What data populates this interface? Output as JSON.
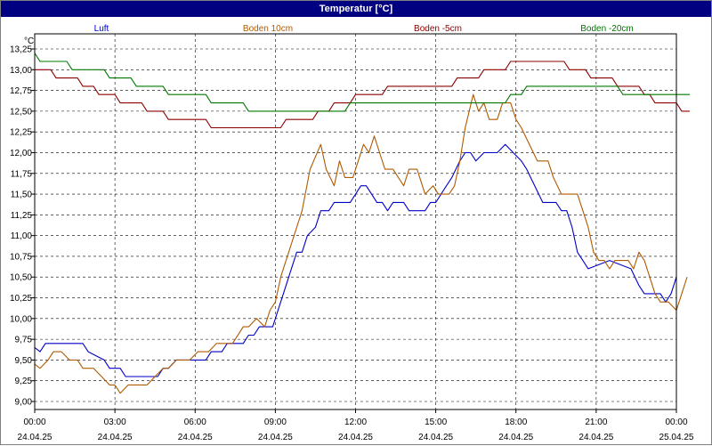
{
  "window": {
    "title": "Temperatur [°C]"
  },
  "chart_data": {
    "type": "line",
    "title": "Temperatur [°C]",
    "ylabel": "°C",
    "xlabel": "",
    "ylim": [
      9.0,
      13.25
    ],
    "y_ticks": [
      "13,25",
      "13,00",
      "12,75",
      "12,50",
      "12,25",
      "12,00",
      "11,75",
      "11,50",
      "11,25",
      "11,00",
      "10,75",
      "10,50",
      "10,25",
      "10,00",
      "9,75",
      "9,50",
      "9,25",
      "9,00"
    ],
    "x_ticks": [
      {
        "time": "00:00",
        "date": "24.04.25"
      },
      {
        "time": "03:00",
        "date": "24.04.25"
      },
      {
        "time": "06:00",
        "date": "24.04.25"
      },
      {
        "time": "09:00",
        "date": "24.04.25"
      },
      {
        "time": "12:00",
        "date": "24.04.25"
      },
      {
        "time": "15:00",
        "date": "24.04.25"
      },
      {
        "time": "18:00",
        "date": "24.04.25"
      },
      {
        "time": "21:00",
        "date": "24.04.25"
      },
      {
        "time": "00:00",
        "date": "25.04.25"
      }
    ],
    "x_unit": "hours",
    "xlim": [
      0,
      24
    ],
    "grid": true,
    "legend_position": "top",
    "series": [
      {
        "name": "Luft",
        "color": "#0000c8",
        "points": [
          [
            0,
            9.65
          ],
          [
            0.2,
            9.6
          ],
          [
            0.4,
            9.7
          ],
          [
            1.8,
            9.7
          ],
          [
            2,
            9.6
          ],
          [
            2.6,
            9.5
          ],
          [
            2.8,
            9.4
          ],
          [
            3.2,
            9.4
          ],
          [
            3.4,
            9.3
          ],
          [
            4.6,
            9.3
          ],
          [
            4.8,
            9.4
          ],
          [
            5.0,
            9.4
          ],
          [
            5.3,
            9.5
          ],
          [
            6.4,
            9.5
          ],
          [
            6.6,
            9.6
          ],
          [
            7.0,
            9.6
          ],
          [
            7.2,
            9.7
          ],
          [
            7.8,
            9.7
          ],
          [
            8.0,
            9.8
          ],
          [
            8.2,
            9.8
          ],
          [
            8.4,
            9.9
          ],
          [
            8.9,
            9.9
          ],
          [
            9.0,
            10.0
          ],
          [
            9.3,
            10.3
          ],
          [
            9.6,
            10.6
          ],
          [
            9.8,
            10.8
          ],
          [
            10.0,
            10.8
          ],
          [
            10.2,
            11.0
          ],
          [
            10.5,
            11.1
          ],
          [
            10.7,
            11.3
          ],
          [
            11.0,
            11.3
          ],
          [
            11.2,
            11.4
          ],
          [
            11.8,
            11.4
          ],
          [
            12.0,
            11.5
          ],
          [
            12.2,
            11.6
          ],
          [
            12.4,
            11.6
          ],
          [
            12.6,
            11.5
          ],
          [
            12.8,
            11.4
          ],
          [
            13.0,
            11.4
          ],
          [
            13.2,
            11.3
          ],
          [
            13.4,
            11.4
          ],
          [
            13.8,
            11.4
          ],
          [
            14.0,
            11.3
          ],
          [
            14.6,
            11.3
          ],
          [
            14.8,
            11.4
          ],
          [
            15.0,
            11.4
          ],
          [
            15.2,
            11.5
          ],
          [
            15.4,
            11.6
          ],
          [
            15.6,
            11.7
          ],
          [
            15.9,
            11.9
          ],
          [
            16.1,
            12.0
          ],
          [
            16.3,
            12.0
          ],
          [
            16.5,
            11.9
          ],
          [
            16.8,
            12.0
          ],
          [
            17.3,
            12.0
          ],
          [
            17.6,
            12.1
          ],
          [
            17.9,
            12.0
          ],
          [
            18.2,
            11.9
          ],
          [
            18.4,
            11.8
          ],
          [
            18.7,
            11.6
          ],
          [
            19.0,
            11.4
          ],
          [
            19.5,
            11.4
          ],
          [
            19.7,
            11.3
          ],
          [
            19.9,
            11.3
          ],
          [
            20.1,
            11.1
          ],
          [
            20.3,
            10.8
          ],
          [
            20.5,
            10.7
          ],
          [
            20.7,
            10.6
          ],
          [
            21.5,
            10.7
          ],
          [
            22.3,
            10.6
          ],
          [
            22.6,
            10.4
          ],
          [
            22.8,
            10.3
          ],
          [
            23.4,
            10.3
          ],
          [
            23.6,
            10.2
          ],
          [
            23.8,
            10.3
          ],
          [
            24.0,
            10.5
          ]
        ]
      },
      {
        "name": "Boden 10cm",
        "color": "#b05a00",
        "points": [
          [
            0,
            9.45
          ],
          [
            0.2,
            9.4
          ],
          [
            0.5,
            9.5
          ],
          [
            0.7,
            9.6
          ],
          [
            1.0,
            9.6
          ],
          [
            1.3,
            9.5
          ],
          [
            1.6,
            9.5
          ],
          [
            1.8,
            9.4
          ],
          [
            2.2,
            9.4
          ],
          [
            2.5,
            9.3
          ],
          [
            2.8,
            9.2
          ],
          [
            3.0,
            9.2
          ],
          [
            3.2,
            9.1
          ],
          [
            3.5,
            9.2
          ],
          [
            4.2,
            9.2
          ],
          [
            4.5,
            9.3
          ],
          [
            4.8,
            9.4
          ],
          [
            5.0,
            9.4
          ],
          [
            5.3,
            9.5
          ],
          [
            5.8,
            9.5
          ],
          [
            6.1,
            9.6
          ],
          [
            6.5,
            9.6
          ],
          [
            6.8,
            9.7
          ],
          [
            7.4,
            9.7
          ],
          [
            7.8,
            9.9
          ],
          [
            8.0,
            9.9
          ],
          [
            8.3,
            10.0
          ],
          [
            8.6,
            9.9
          ],
          [
            8.8,
            10.1
          ],
          [
            9.0,
            10.2
          ],
          [
            9.2,
            10.5
          ],
          [
            9.5,
            10.8
          ],
          [
            9.8,
            11.1
          ],
          [
            10.0,
            11.3
          ],
          [
            10.3,
            11.8
          ],
          [
            10.7,
            12.1
          ],
          [
            10.9,
            11.8
          ],
          [
            11.2,
            11.6
          ],
          [
            11.4,
            11.9
          ],
          [
            11.6,
            11.7
          ],
          [
            11.9,
            11.7
          ],
          [
            12.1,
            11.9
          ],
          [
            12.3,
            12.1
          ],
          [
            12.5,
            12.0
          ],
          [
            12.7,
            12.2
          ],
          [
            12.9,
            12.0
          ],
          [
            13.1,
            11.8
          ],
          [
            13.4,
            11.8
          ],
          [
            13.6,
            11.7
          ],
          [
            13.8,
            11.6
          ],
          [
            14.0,
            11.8
          ],
          [
            14.3,
            11.8
          ],
          [
            14.6,
            11.5
          ],
          [
            14.9,
            11.6
          ],
          [
            15.1,
            11.5
          ],
          [
            15.5,
            11.5
          ],
          [
            15.7,
            11.6
          ],
          [
            15.9,
            11.9
          ],
          [
            16.1,
            12.3
          ],
          [
            16.4,
            12.7
          ],
          [
            16.6,
            12.5
          ],
          [
            16.8,
            12.6
          ],
          [
            17.0,
            12.4
          ],
          [
            17.3,
            12.4
          ],
          [
            17.5,
            12.6
          ],
          [
            17.8,
            12.6
          ],
          [
            18.0,
            12.4
          ],
          [
            18.2,
            12.3
          ],
          [
            18.5,
            12.1
          ],
          [
            18.8,
            11.9
          ],
          [
            19.2,
            11.9
          ],
          [
            19.4,
            11.7
          ],
          [
            19.7,
            11.5
          ],
          [
            20.3,
            11.5
          ],
          [
            20.5,
            11.3
          ],
          [
            20.7,
            11.1
          ],
          [
            20.9,
            10.8
          ],
          [
            21.1,
            10.7
          ],
          [
            21.3,
            10.7
          ],
          [
            21.5,
            10.6
          ],
          [
            21.7,
            10.7
          ],
          [
            22.2,
            10.7
          ],
          [
            22.4,
            10.6
          ],
          [
            22.6,
            10.8
          ],
          [
            22.8,
            10.7
          ],
          [
            23.0,
            10.5
          ],
          [
            23.2,
            10.3
          ],
          [
            23.4,
            10.2
          ],
          [
            23.7,
            10.2
          ],
          [
            24.0,
            10.1
          ],
          [
            24.2,
            10.3
          ],
          [
            24.4,
            10.5
          ]
        ]
      },
      {
        "name": "Boden -5cm",
        "color": "#8b0000",
        "points": [
          [
            0,
            13.0
          ],
          [
            0.6,
            13.0
          ],
          [
            0.8,
            12.9
          ],
          [
            1.6,
            12.9
          ],
          [
            1.8,
            12.8
          ],
          [
            2.2,
            12.8
          ],
          [
            2.4,
            12.7
          ],
          [
            3.0,
            12.7
          ],
          [
            3.2,
            12.6
          ],
          [
            4.0,
            12.6
          ],
          [
            4.2,
            12.5
          ],
          [
            4.8,
            12.5
          ],
          [
            5.0,
            12.4
          ],
          [
            6.4,
            12.4
          ],
          [
            6.6,
            12.3
          ],
          [
            9.2,
            12.3
          ],
          [
            9.4,
            12.4
          ],
          [
            10.4,
            12.4
          ],
          [
            10.6,
            12.5
          ],
          [
            11.0,
            12.5
          ],
          [
            11.2,
            12.6
          ],
          [
            11.8,
            12.6
          ],
          [
            12.0,
            12.7
          ],
          [
            13.0,
            12.7
          ],
          [
            13.2,
            12.8
          ],
          [
            15.6,
            12.8
          ],
          [
            15.8,
            12.9
          ],
          [
            16.6,
            12.9
          ],
          [
            16.8,
            13.0
          ],
          [
            17.6,
            13.0
          ],
          [
            17.8,
            13.1
          ],
          [
            19.8,
            13.1
          ],
          [
            20.0,
            13.0
          ],
          [
            20.6,
            13.0
          ],
          [
            20.8,
            12.9
          ],
          [
            21.6,
            12.9
          ],
          [
            21.8,
            12.8
          ],
          [
            22.6,
            12.8
          ],
          [
            22.8,
            12.7
          ],
          [
            23.0,
            12.7
          ],
          [
            23.2,
            12.6
          ],
          [
            24.0,
            12.6
          ],
          [
            24.2,
            12.5
          ],
          [
            24.5,
            12.5
          ]
        ]
      },
      {
        "name": "Boden -20cm",
        "color": "#007800",
        "points": [
          [
            0,
            13.2
          ],
          [
            0.2,
            13.1
          ],
          [
            1.2,
            13.1
          ],
          [
            1.4,
            13.0
          ],
          [
            2.6,
            13.0
          ],
          [
            2.8,
            12.9
          ],
          [
            3.6,
            12.9
          ],
          [
            3.8,
            12.8
          ],
          [
            4.8,
            12.8
          ],
          [
            5.0,
            12.7
          ],
          [
            6.4,
            12.7
          ],
          [
            6.6,
            12.6
          ],
          [
            7.8,
            12.6
          ],
          [
            8.0,
            12.5
          ],
          [
            11.6,
            12.5
          ],
          [
            11.8,
            12.6
          ],
          [
            17.6,
            12.6
          ],
          [
            17.8,
            12.7
          ],
          [
            18.2,
            12.7
          ],
          [
            18.4,
            12.8
          ],
          [
            21.8,
            12.8
          ],
          [
            22.0,
            12.7
          ],
          [
            24.5,
            12.7
          ]
        ]
      }
    ]
  }
}
